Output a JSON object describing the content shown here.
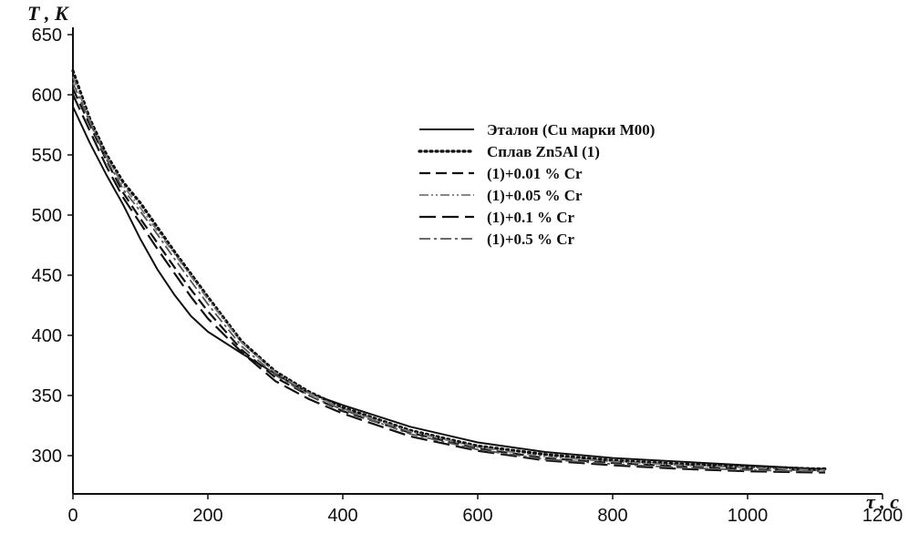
{
  "chart_data": {
    "type": "line",
    "y_axis_title": "T , K",
    "x_axis_title": "τ , c",
    "xlim": [
      0,
      1200
    ],
    "ylim": [
      280,
      650
    ],
    "x_ticks": [
      "0",
      "200",
      "400",
      "600",
      "800",
      "1000",
      "1200"
    ],
    "y_ticks": [
      "300",
      "350",
      "400",
      "450",
      "500",
      "550",
      "600",
      "650"
    ],
    "grid": false,
    "legend_position": "upper-center",
    "series": [
      {
        "name": "Эталон (Cu марки М00)",
        "style": "solid",
        "color": "#111111",
        "x": [
          0,
          25,
          50,
          75,
          100,
          125,
          150,
          175,
          200,
          250,
          300,
          350,
          400,
          500,
          600,
          700,
          800,
          900,
          1000,
          1100,
          1115
        ],
        "y": [
          590,
          560,
          533,
          508,
          480,
          455,
          434,
          416,
          403,
          385,
          368,
          352,
          342,
          324,
          311,
          303,
          298,
          295,
          292,
          289,
          289
        ]
      },
      {
        "name": "Сплав Zn5Al (1)",
        "style": "dotted",
        "color": "#111111",
        "x": [
          0,
          25,
          50,
          75,
          100,
          125,
          150,
          175,
          200,
          250,
          300,
          350,
          400,
          500,
          600,
          700,
          800,
          900,
          1000,
          1100,
          1115
        ],
        "y": [
          620,
          580,
          550,
          527,
          510,
          490,
          470,
          451,
          432,
          395,
          370,
          353,
          340,
          321,
          308,
          301,
          296,
          293,
          291,
          289,
          289
        ]
      },
      {
        "name": "(1)+0.01 % Cr",
        "style": "dashed",
        "color": "#111111",
        "x": [
          0,
          25,
          50,
          75,
          100,
          125,
          150,
          175,
          200,
          250,
          300,
          350,
          400,
          500,
          600,
          700,
          800,
          900,
          1000,
          1100,
          1115
        ],
        "y": [
          605,
          575,
          545,
          518,
          497,
          477,
          457,
          438,
          420,
          388,
          365,
          350,
          337,
          319,
          306,
          298,
          294,
          291,
          289,
          288,
          288
        ]
      },
      {
        "name": "(1)+0.05 % Cr",
        "style": "dash-dot-dot",
        "color": "#777777",
        "x": [
          0,
          25,
          50,
          75,
          100,
          125,
          150,
          175,
          200,
          250,
          300,
          350,
          400,
          500,
          600,
          700,
          800,
          900,
          1000,
          1100,
          1115
        ],
        "y": [
          615,
          578,
          548,
          524,
          506,
          487,
          468,
          449,
          430,
          394,
          369,
          352,
          339,
          320,
          307,
          299,
          295,
          292,
          290,
          288,
          288
        ]
      },
      {
        "name": "(1)+0.1 % Cr",
        "style": "long-dash",
        "color": "#111111",
        "x": [
          0,
          25,
          50,
          75,
          100,
          125,
          150,
          175,
          200,
          250,
          300,
          350,
          400,
          500,
          600,
          700,
          800,
          900,
          1000,
          1100,
          1115
        ],
        "y": [
          600,
          570,
          540,
          514,
          493,
          472,
          452,
          432,
          414,
          386,
          362,
          347,
          335,
          316,
          304,
          296,
          292,
          289,
          287,
          286,
          286
        ]
      },
      {
        "name": "(1)+0.5 % Cr",
        "style": "dash-dot",
        "color": "#555555",
        "x": [
          0,
          25,
          50,
          75,
          100,
          125,
          150,
          175,
          200,
          250,
          300,
          350,
          400,
          500,
          600,
          700,
          800,
          900,
          1000,
          1100,
          1115
        ],
        "y": [
          610,
          577,
          546,
          521,
          503,
          484,
          464,
          445,
          426,
          391,
          367,
          350,
          338,
          318,
          305,
          297,
          293,
          290,
          288,
          287,
          287
        ]
      }
    ]
  }
}
